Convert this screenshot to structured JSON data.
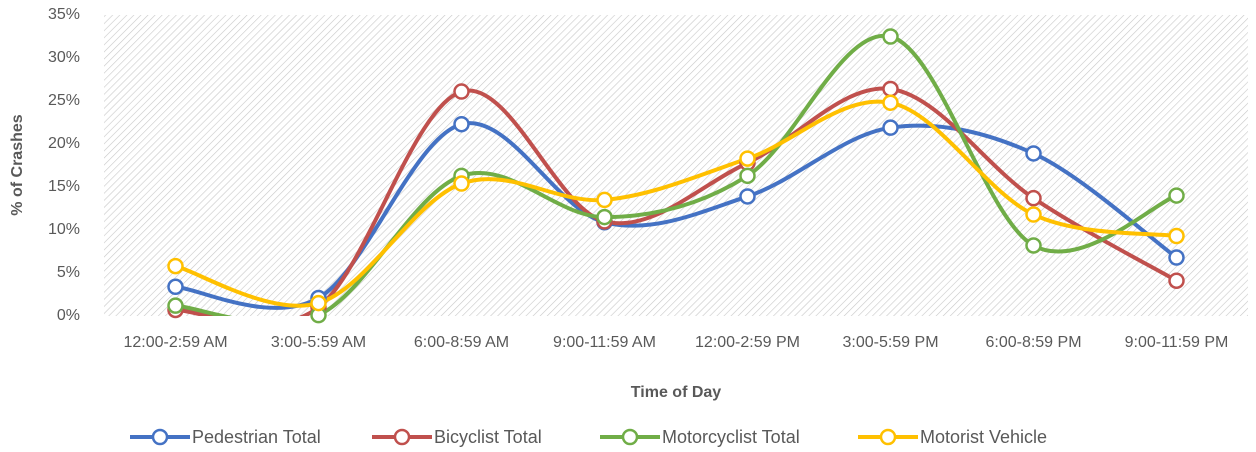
{
  "chart_data": {
    "type": "line",
    "x_label": "Time of Day",
    "y_label": "% of Crashes",
    "categories": [
      "12:00-2:59 AM",
      "3:00-5:59 AM",
      "6:00-8:59 AM",
      "9:00-11:59 AM",
      "12:00-2:59 PM",
      "3:00-5:59 PM",
      "6:00-8:59 PM",
      "9:00-11:59 PM"
    ],
    "series": [
      {
        "name": "Pedestrian Total",
        "color": "#4472c4",
        "values": [
          3.4,
          2.1,
          22.3,
          10.9,
          13.9,
          21.9,
          18.9,
          6.8
        ]
      },
      {
        "name": "Bicyclist Total",
        "color": "#c0504d",
        "values": [
          0.7,
          1.0,
          26.1,
          11.0,
          17.8,
          26.4,
          13.7,
          4.1
        ]
      },
      {
        "name": "Motorcyclist Total",
        "color": "#70ad47",
        "values": [
          1.2,
          0.1,
          16.3,
          11.5,
          16.3,
          32.5,
          8.2,
          14.0
        ]
      },
      {
        "name": "Motorist Vehicle",
        "color": "#ffc000",
        "values": [
          5.8,
          1.5,
          15.4,
          13.5,
          18.3,
          24.8,
          11.8,
          9.3
        ]
      }
    ],
    "ylim": [
      0,
      35
    ],
    "yticks": [
      {
        "value": 0,
        "label": "0%"
      },
      {
        "value": 5,
        "label": "5%"
      },
      {
        "value": 10,
        "label": "10%"
      },
      {
        "value": 15,
        "label": "15%"
      },
      {
        "value": 20,
        "label": "20%"
      },
      {
        "value": 25,
        "label": "25%"
      },
      {
        "value": 30,
        "label": "30%"
      },
      {
        "value": 35,
        "label": "35%"
      }
    ],
    "smooth": true,
    "legend": "bottom"
  }
}
